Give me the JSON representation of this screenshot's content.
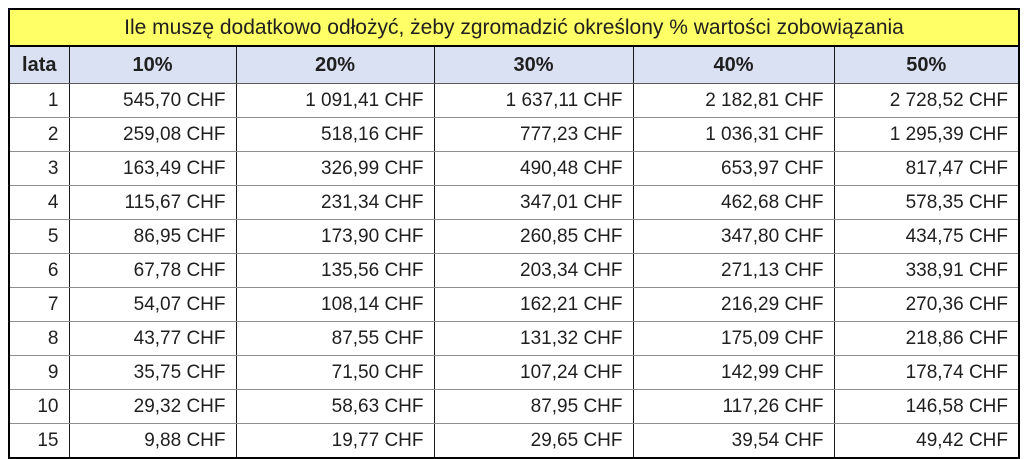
{
  "title": "Ile muszę dodatkowo odłożyć, żeby zgromadzić określony % wartości zobowiązania",
  "colors": {
    "title_bg": "#ffff66",
    "header_bg": "#d9e1f2",
    "outer_border": "#000000",
    "column_border": "#1a1a1a",
    "row_border": "#8e8e8e",
    "text": "#1f1f1f"
  },
  "chart_data": {
    "type": "table",
    "title": "Ile muszę dodatkowo odłożyć, żeby zgromadzić określony % wartości zobowiązania",
    "columns": [
      "lata",
      "10%",
      "20%",
      "30%",
      "40%",
      "50%"
    ],
    "unit": "CHF",
    "rows": [
      {
        "lata": "1",
        "values": [
          "545,70 CHF",
          "1 091,41 CHF",
          "1 637,11 CHF",
          "2 182,81 CHF",
          "2 728,52 CHF"
        ]
      },
      {
        "lata": "2",
        "values": [
          "259,08 CHF",
          "518,16 CHF",
          "777,23 CHF",
          "1 036,31 CHF",
          "1 295,39 CHF"
        ]
      },
      {
        "lata": "3",
        "values": [
          "163,49 CHF",
          "326,99 CHF",
          "490,48 CHF",
          "653,97 CHF",
          "817,47 CHF"
        ]
      },
      {
        "lata": "4",
        "values": [
          "115,67 CHF",
          "231,34 CHF",
          "347,01 CHF",
          "462,68 CHF",
          "578,35 CHF"
        ]
      },
      {
        "lata": "5",
        "values": [
          "86,95 CHF",
          "173,90 CHF",
          "260,85 CHF",
          "347,80 CHF",
          "434,75 CHF"
        ]
      },
      {
        "lata": "6",
        "values": [
          "67,78 CHF",
          "135,56 CHF",
          "203,34 CHF",
          "271,13 CHF",
          "338,91 CHF"
        ]
      },
      {
        "lata": "7",
        "values": [
          "54,07 CHF",
          "108,14 CHF",
          "162,21 CHF",
          "216,29 CHF",
          "270,36 CHF"
        ]
      },
      {
        "lata": "8",
        "values": [
          "43,77 CHF",
          "87,55 CHF",
          "131,32 CHF",
          "175,09 CHF",
          "218,86 CHF"
        ]
      },
      {
        "lata": "9",
        "values": [
          "35,75 CHF",
          "71,50 CHF",
          "107,24 CHF",
          "142,99 CHF",
          "178,74 CHF"
        ]
      },
      {
        "lata": "10",
        "values": [
          "29,32 CHF",
          "58,63 CHF",
          "87,95 CHF",
          "117,26 CHF",
          "146,58 CHF"
        ]
      },
      {
        "lata": "15",
        "values": [
          "9,88 CHF",
          "19,77 CHF",
          "29,65 CHF",
          "39,54 CHF",
          "49,42 CHF"
        ]
      }
    ]
  }
}
